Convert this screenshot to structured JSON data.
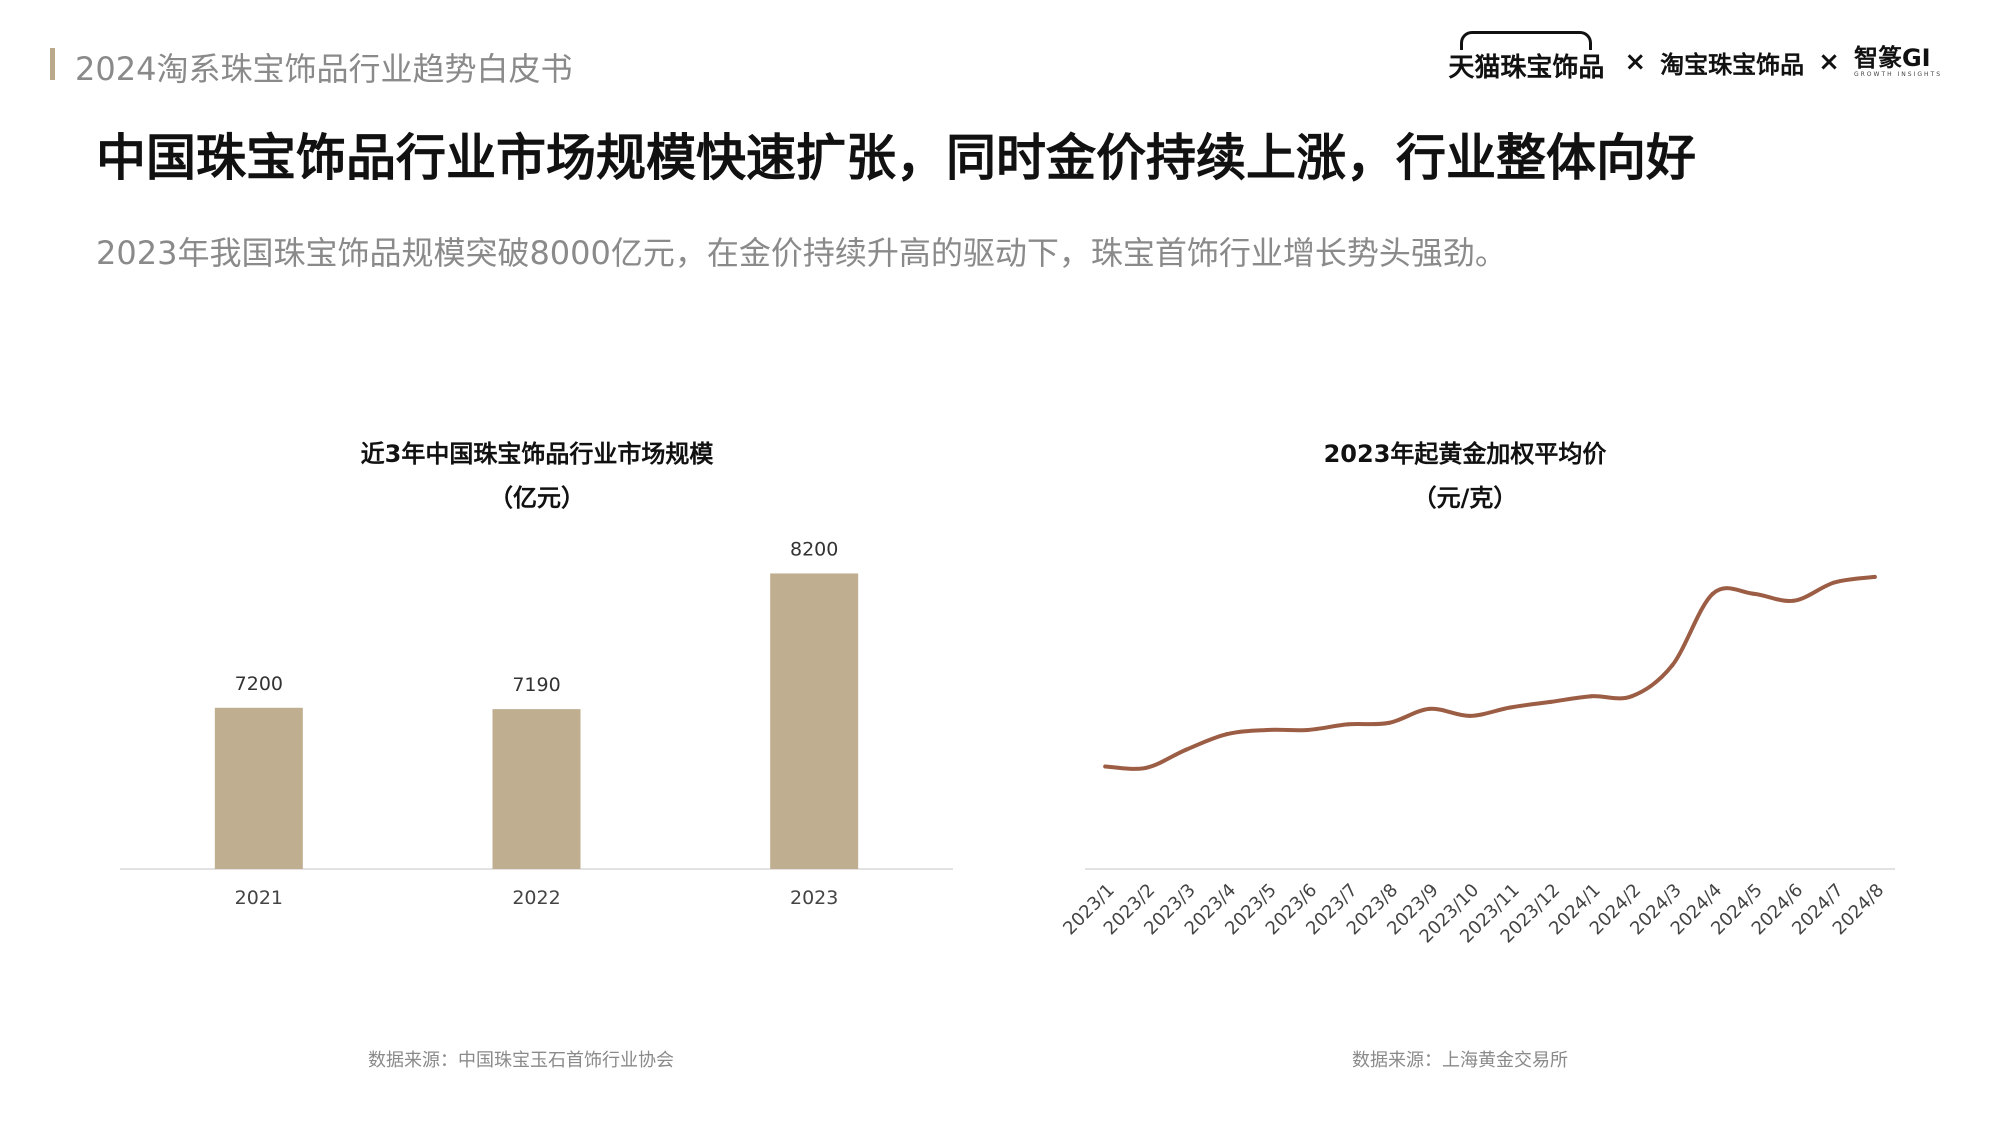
{
  "header": {
    "title": "2024淘系珠宝饰品行业趋势白皮书",
    "logos": {
      "tmall": "天猫珠宝饰品",
      "separator": "×",
      "taobao": "淘宝珠宝饰品",
      "gi": "智篆GI",
      "gi_sub": "GROWTH INSIGHTS"
    }
  },
  "main": {
    "title": "中国珠宝饰品行业市场规模快速扩张，同时金价持续上涨，行业整体向好",
    "subtitle": "2023年我国珠宝饰品规模突破8000亿元，在金价持续升高的驱动下，珠宝首饰行业增长势头强劲。"
  },
  "colors": {
    "bar": "#bfae8f",
    "line": "#9c5d45",
    "axis": "#d9d9d9",
    "accent_bar": "#b9a98a"
  },
  "chart_data": [
    {
      "type": "bar",
      "title": "近3年中国珠宝饰品行业市场规模",
      "unit": "（亿元）",
      "categories": [
        "2021",
        "2022",
        "2023"
      ],
      "values": [
        7200,
        7190,
        8200
      ],
      "ylim": [
        6000,
        8300
      ],
      "source": "数据来源：中国珠宝玉石首饰行业协会"
    },
    {
      "type": "line",
      "title": "2023年起黄金加权平均价",
      "unit": "（元/克）",
      "categories": [
        "2023/1",
        "2023/2",
        "2023/3",
        "2023/4",
        "2023/5",
        "2023/6",
        "2023/7",
        "2023/8",
        "2023/9",
        "2023/10",
        "2023/11",
        "2023/12",
        "2024/1",
        "2024/2",
        "2024/3",
        "2024/4",
        "2024/5",
        "2024/6",
        "2024/7",
        "2024/8"
      ],
      "values": [
        413,
        412,
        425,
        436,
        439,
        439,
        443,
        444,
        454,
        449,
        455,
        459,
        463,
        463,
        485,
        536,
        536,
        531,
        544,
        548
      ],
      "ylim": [
        340,
        560
      ],
      "source": "数据来源：上海黄金交易所"
    }
  ]
}
